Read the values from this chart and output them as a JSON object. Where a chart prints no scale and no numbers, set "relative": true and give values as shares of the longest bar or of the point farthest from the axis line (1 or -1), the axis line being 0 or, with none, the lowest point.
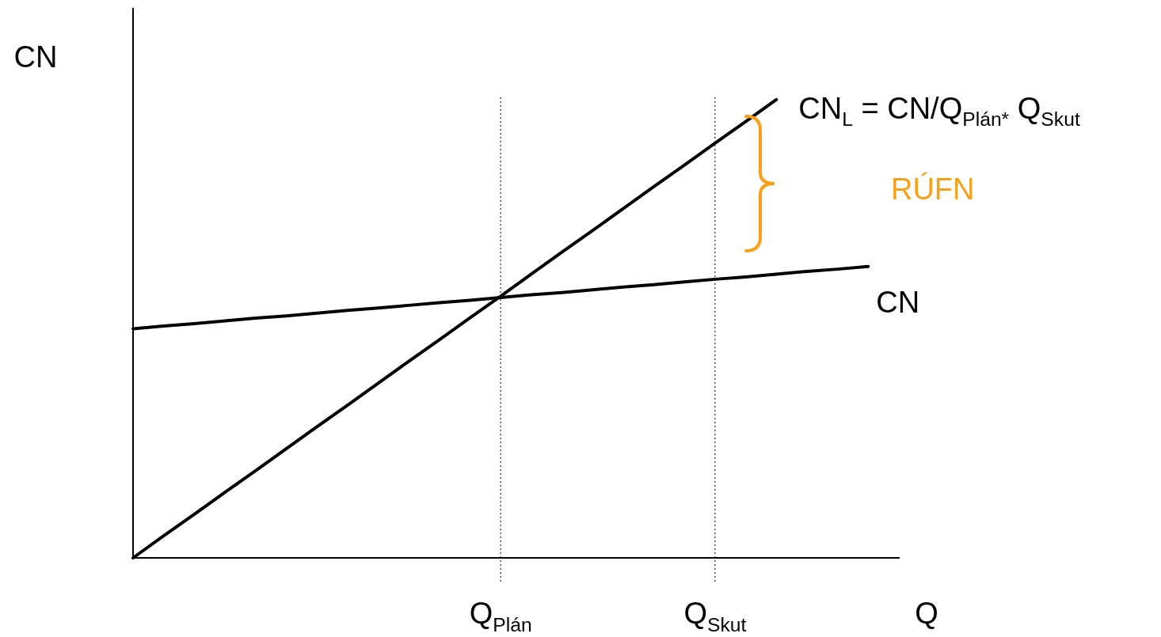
{
  "chart_data": {
    "type": "line",
    "relative": true,
    "xlabel": "Q",
    "ylabel": "CN",
    "legend": false,
    "grid": false,
    "marker": "none",
    "line_style": "solid",
    "categories": [
      null,
      null,
      null,
      null,
      null,
      null,
      null,
      null,
      null,
      null,
      null,
      null,
      "Q$_{Plán}$",
      null,
      null,
      null,
      null,
      null,
      null,
      "Q$_{Skut}$",
      null,
      null,
      null,
      null,
      null,
      null
    ],
    "series": [
      {
        "name": "CN$_{L}$ = CN/Q$_{Plán*}$ Q$_{Skut}$",
        "color": "#000000",
        "values": [
          0,
          0.048,
          0.095,
          0.143,
          0.19,
          0.238,
          0.286,
          0.333,
          0.381,
          0.429,
          0.476,
          0.524,
          0.571,
          0.619,
          0.667,
          0.714,
          0.762,
          0.81,
          0.857,
          0.905,
          0.952,
          1,
          null,
          null,
          null,
          null
        ]
      },
      {
        "name": "CN",
        "color": "#000000",
        "values": [
          0.5,
          0.506,
          0.511,
          0.517,
          0.523,
          0.528,
          0.534,
          0.54,
          0.545,
          0.551,
          0.557,
          0.562,
          0.568,
          0.574,
          0.579,
          0.585,
          0.591,
          0.596,
          0.602,
          0.608,
          0.613,
          0.619,
          0.625,
          0.63,
          0.636,
          null
        ]
      }
    ],
    "ref_lines": [
      {
        "axis": "x",
        "value": "Q$_{Plán}$",
        "color": "#000000",
        "line_style": "dotted"
      },
      {
        "axis": "x",
        "value": "Q$_{Skut}$",
        "color": "#000000",
        "line_style": "dotted"
      }
    ],
    "annotations": [
      "RÚFN"
    ]
  }
}
